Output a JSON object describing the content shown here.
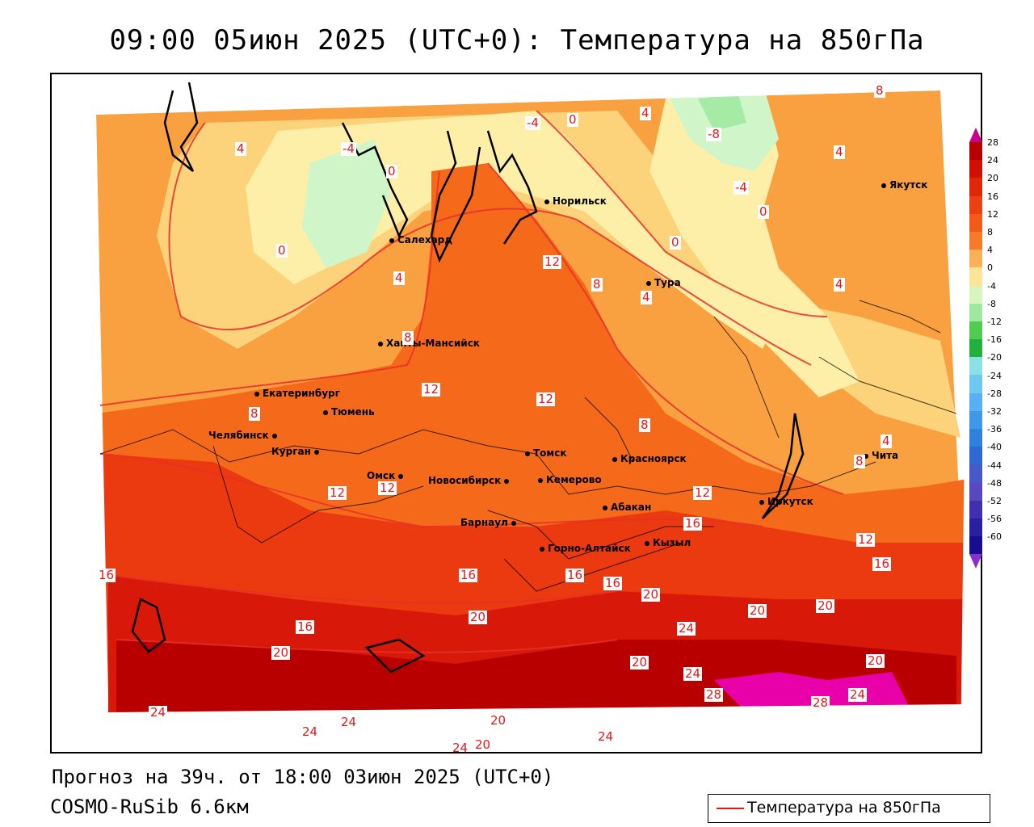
{
  "title": "09:00 05июн 2025 (UTC+0): Температура на 850гПа",
  "footer": {
    "forecast": "Прогноз на 39ч. от 18:00 03июн 2025 (UTC+0)",
    "model": "COSMO-RuSib 6.6км"
  },
  "legend": {
    "label": "Температура на 850гПа",
    "line_color": "#e01818"
  },
  "colors": {
    "hot28": "#e800a8",
    "t24": "#b80000",
    "t20": "#d81808",
    "t16": "#ec3a10",
    "t12": "#f56a1a",
    "t8": "#f9a040",
    "t4": "#fcd27a",
    "t0": "#fdeea8",
    "tm4": "#cff5c8",
    "tm8": "#a5eaa5"
  },
  "colorbar": {
    "labels": [
      "28",
      "24",
      "20",
      "16",
      "12",
      "8",
      "4",
      "0",
      "-4",
      "-8",
      "-12",
      "-16",
      "-20",
      "-24",
      "-28",
      "-32",
      "-36",
      "-40",
      "-44",
      "-48",
      "-52",
      "-56",
      "-60"
    ],
    "colors": [
      "#b80000",
      "#d01000",
      "#e02808",
      "#ec4010",
      "#f25a18",
      "#f77a28",
      "#fbb058",
      "#fde598",
      "#d8f5c0",
      "#a0e8a0",
      "#50cc50",
      "#20b040",
      "#8ce0e8",
      "#70c8f0",
      "#58b0f0",
      "#4098e8",
      "#3080e0",
      "#3068d8",
      "#4858c8",
      "#5848c0",
      "#4030b0",
      "#2820a0",
      "#180c90"
    ]
  },
  "cities": [
    {
      "name": "Норильск"
    },
    {
      "name": "Салехард"
    },
    {
      "name": "Якутск"
    },
    {
      "name": "Тура"
    },
    {
      "name": "Ханты-Мансийск"
    },
    {
      "name": "Екатеринбург"
    },
    {
      "name": "Тюмень"
    },
    {
      "name": "Челябинск"
    },
    {
      "name": "Курган"
    },
    {
      "name": "Томск"
    },
    {
      "name": "Красноярск"
    },
    {
      "name": "Омск"
    },
    {
      "name": "Новосибирск"
    },
    {
      "name": "Кемерово"
    },
    {
      "name": "Абакан"
    },
    {
      "name": "Иркутск"
    },
    {
      "name": "Чита"
    },
    {
      "name": "Барнаул"
    },
    {
      "name": "Горно-Алтайск"
    },
    {
      "name": "Кызыл"
    }
  ],
  "contour_labels": [
    "8",
    "4",
    "-4",
    "0",
    "-4",
    "0",
    "4",
    "-8",
    "-4",
    "0",
    "0",
    "4",
    "0",
    "4",
    "8",
    "4",
    "12",
    "4",
    "8",
    "12",
    "12",
    "8",
    "8",
    "12",
    "12",
    "4",
    "8",
    "16",
    "12",
    "16",
    "12",
    "16",
    "16",
    "16",
    "16",
    "20",
    "20",
    "20",
    "16",
    "20",
    "20",
    "24",
    "20",
    "20",
    "24",
    "28",
    "24",
    "28",
    "24",
    "24",
    "24",
    "20",
    "24",
    "20",
    "24"
  ]
}
